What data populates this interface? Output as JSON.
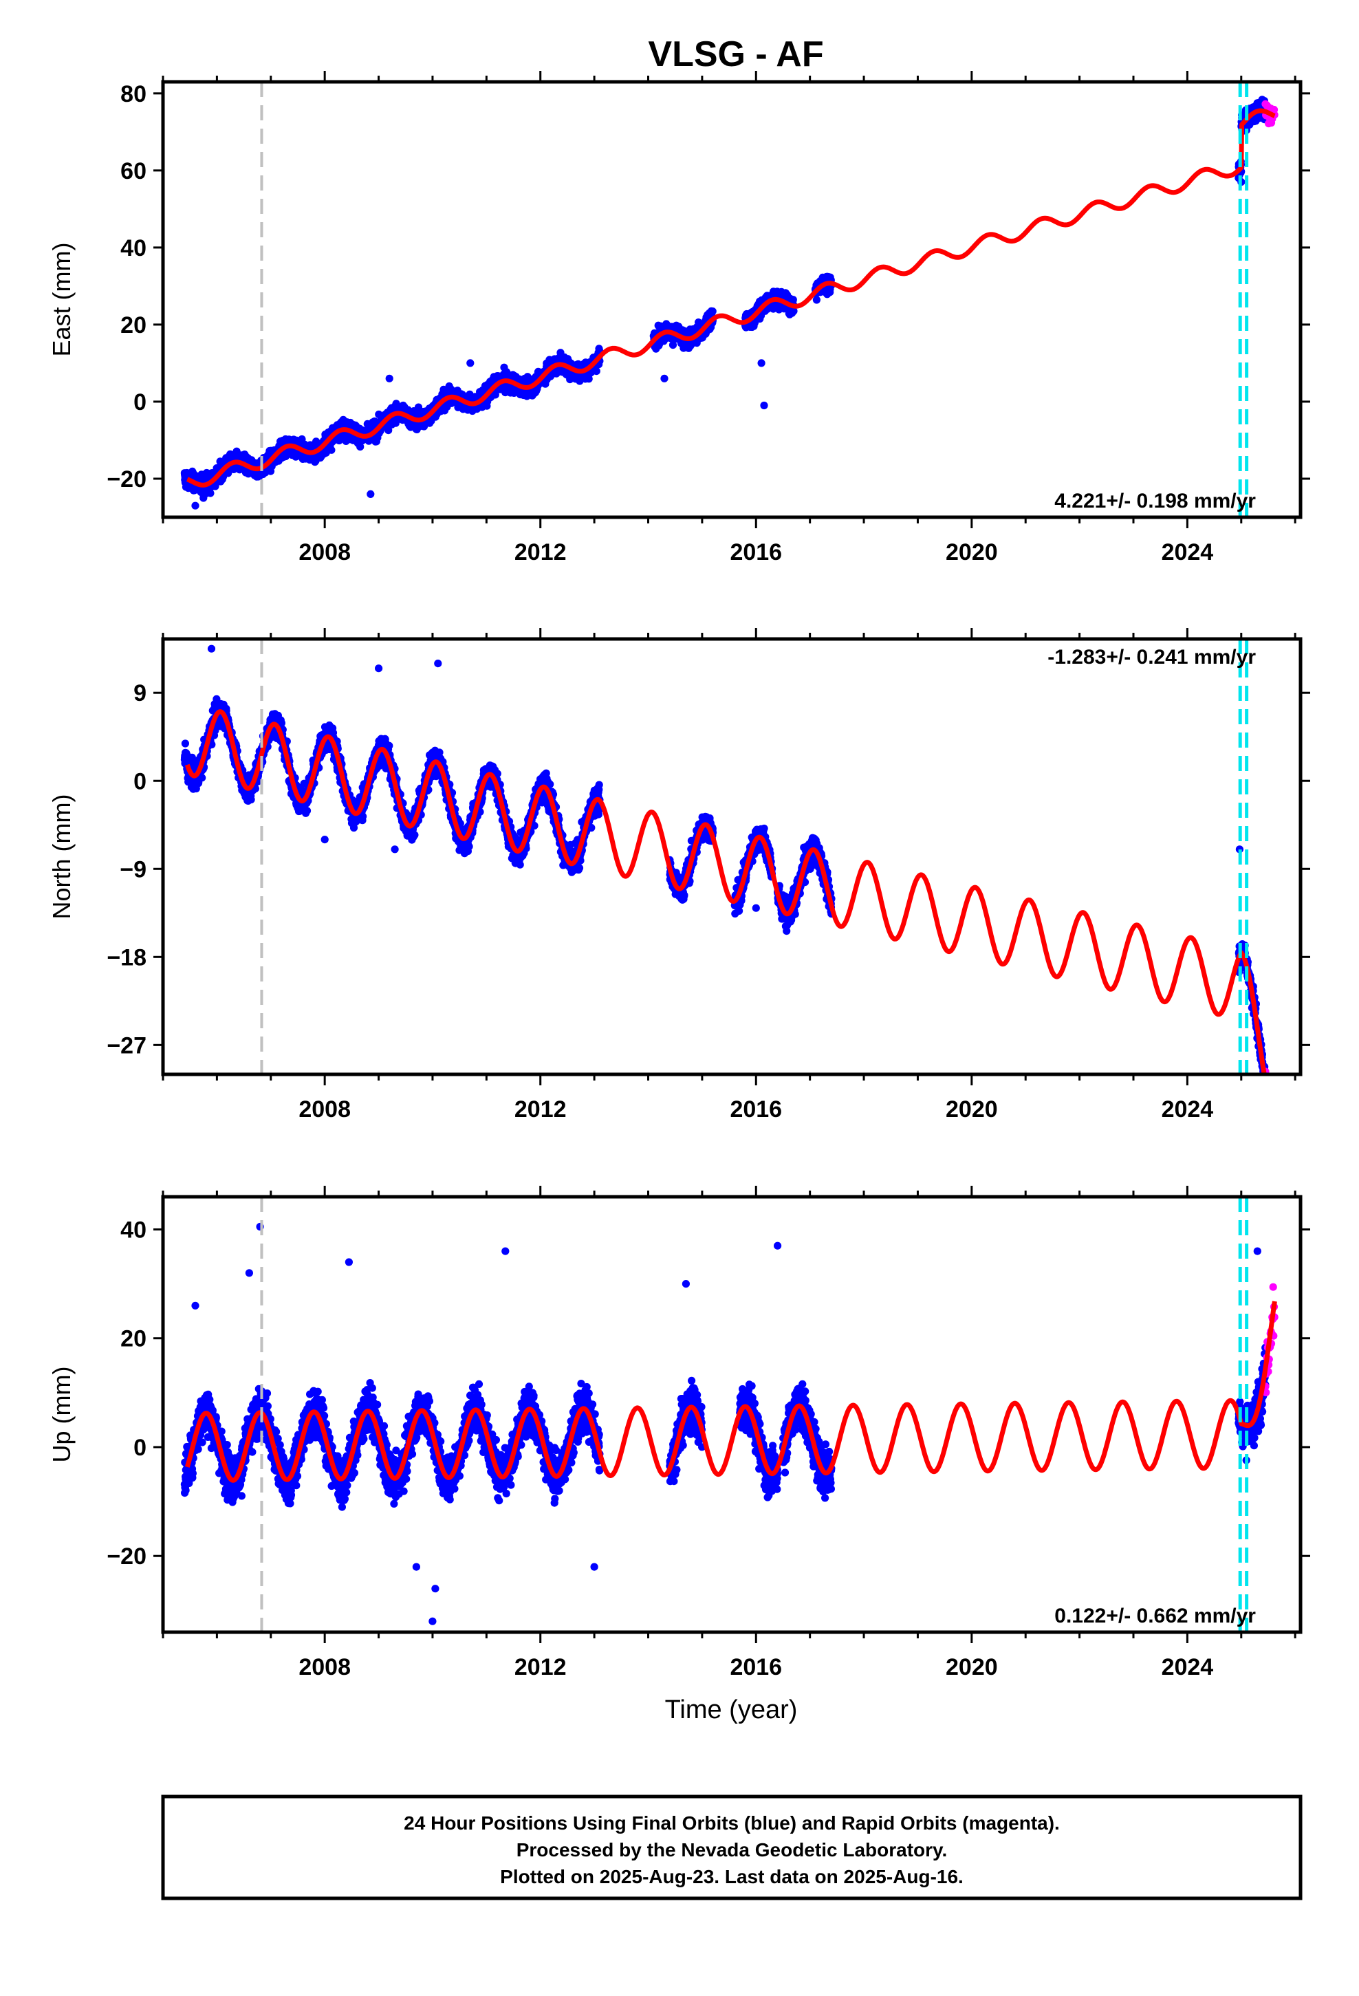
{
  "title": "VLSG - AF",
  "colors": {
    "final_orbits": "#0000ff",
    "rapid_orbits": "#ff00ff",
    "model": "#ff0000",
    "equipment_change": "#c0c0c0",
    "offset_lines": "#00e5ee"
  },
  "x_axis": {
    "label": "Time (year)",
    "range": [
      2005.0,
      2026.1
    ],
    "ticks": [
      2008,
      2012,
      2016,
      2020,
      2024
    ],
    "tick_labels": [
      "2008",
      "2012",
      "2016",
      "2020",
      "2024"
    ]
  },
  "vertical_lines": {
    "equipment_change": [
      2006.83
    ],
    "offsets": [
      2024.98,
      2025.1
    ]
  },
  "note": {
    "lines": [
      "24 Hour Positions Using Final Orbits (blue) and Rapid Orbits (magenta).",
      "Processed by the Nevada Geodetic Laboratory.",
      "Plotted on 2025-Aug-23. Last data on 2025-Aug-16."
    ]
  },
  "chart_data": [
    {
      "type": "scatter",
      "ylabel": "East (mm)",
      "ylim": [
        -30,
        83
      ],
      "yticks": [
        -20,
        0,
        20,
        40,
        60,
        80
      ],
      "ytick_labels": [
        "−20",
        "0",
        "20",
        "40",
        "60",
        "80"
      ],
      "rate_text": "4.221+/- 0.198 mm/yr",
      "rate_position": "bottom-right",
      "model": {
        "slope": 4.221,
        "anchor_year": 2005.5,
        "anchor_value": -21,
        "amplitude": 1.8,
        "phase": 0.05,
        "jump_year": 2025.0,
        "jump": 11
      },
      "data_spans": [
        [
          2005.4,
          2013.1
        ],
        [
          2014.1,
          2015.2
        ],
        [
          2015.8,
          2016.7
        ],
        [
          2017.1,
          2017.4
        ],
        [
          2024.95,
          2025.45
        ]
      ],
      "rapid_span": [
        2025.45,
        2025.62
      ],
      "scatter": 2.8,
      "outliers": [
        [
          2005.6,
          -27
        ],
        [
          2005.75,
          -25
        ],
        [
          2008.85,
          -24
        ],
        [
          2009.2,
          6
        ],
        [
          2010.7,
          10
        ],
        [
          2014.3,
          6
        ],
        [
          2016.1,
          10
        ],
        [
          2016.15,
          -1
        ],
        [
          2025.0,
          57
        ]
      ]
    },
    {
      "type": "scatter",
      "ylabel": "North (mm)",
      "ylim": [
        -30,
        14.5
      ],
      "yticks": [
        -27,
        -18,
        -9,
        0,
        9
      ],
      "ytick_labels": [
        "−27",
        "−18",
        "−9",
        "0",
        "9"
      ],
      "rate_text": "-1.283+/- 0.241 mm/yr",
      "rate_position": "top-right",
      "model": {
        "slope": -1.283,
        "anchor_year": 2005.5,
        "anchor_value": 4.2,
        "amplitude": 3.6,
        "phase": 0.82,
        "jump_year": 2025.0,
        "jump": 0,
        "post_slope": -15
      },
      "data_spans": [
        [
          2005.4,
          2013.1
        ],
        [
          2014.4,
          2015.2
        ],
        [
          2015.6,
          2016.3
        ],
        [
          2016.4,
          2017.4
        ],
        [
          2024.95,
          2025.45
        ]
      ],
      "rapid_span": [
        2025.45,
        2025.62
      ],
      "scatter": 1.7,
      "outliers": [
        [
          2005.9,
          13.5
        ],
        [
          2008.0,
          -6
        ],
        [
          2009.0,
          11.5
        ],
        [
          2009.3,
          -7
        ],
        [
          2010.1,
          12
        ],
        [
          2012.7,
          -9
        ],
        [
          2016.0,
          -13
        ],
        [
          2024.97,
          -7
        ],
        [
          2025.4,
          -29
        ]
      ]
    },
    {
      "type": "scatter",
      "ylabel": "Up (mm)",
      "ylim": [
        -34,
        46
      ],
      "yticks": [
        -20,
        0,
        20,
        40
      ],
      "ytick_labels": [
        "−20",
        "0",
        "20",
        "40"
      ],
      "rate_text": "0.122+/- 0.662 mm/yr",
      "rate_position": "bottom-right",
      "model": {
        "slope": 0.122,
        "anchor_year": 2005.5,
        "anchor_value": 0,
        "amplitude": 6.2,
        "phase": 0.55,
        "jump_year": 2025.0,
        "jump": 0,
        "post_slope": 35
      },
      "data_spans": [
        [
          2005.4,
          2013.1
        ],
        [
          2014.4,
          2015.0
        ],
        [
          2015.7,
          2016.4
        ],
        [
          2016.5,
          2017.4
        ],
        [
          2024.95,
          2025.45
        ]
      ],
      "rapid_span": [
        2025.45,
        2025.62
      ],
      "scatter": 5.2,
      "outliers": [
        [
          2006.8,
          40.5
        ],
        [
          2006.6,
          32
        ],
        [
          2008.45,
          34
        ],
        [
          2011.35,
          36
        ],
        [
          2016.4,
          37
        ],
        [
          2010.0,
          -32
        ],
        [
          2010.05,
          -26
        ],
        [
          2014.7,
          30
        ],
        [
          2025.3,
          36
        ],
        [
          2005.6,
          26
        ],
        [
          2009.7,
          -22
        ],
        [
          2013.0,
          -22
        ]
      ]
    }
  ]
}
